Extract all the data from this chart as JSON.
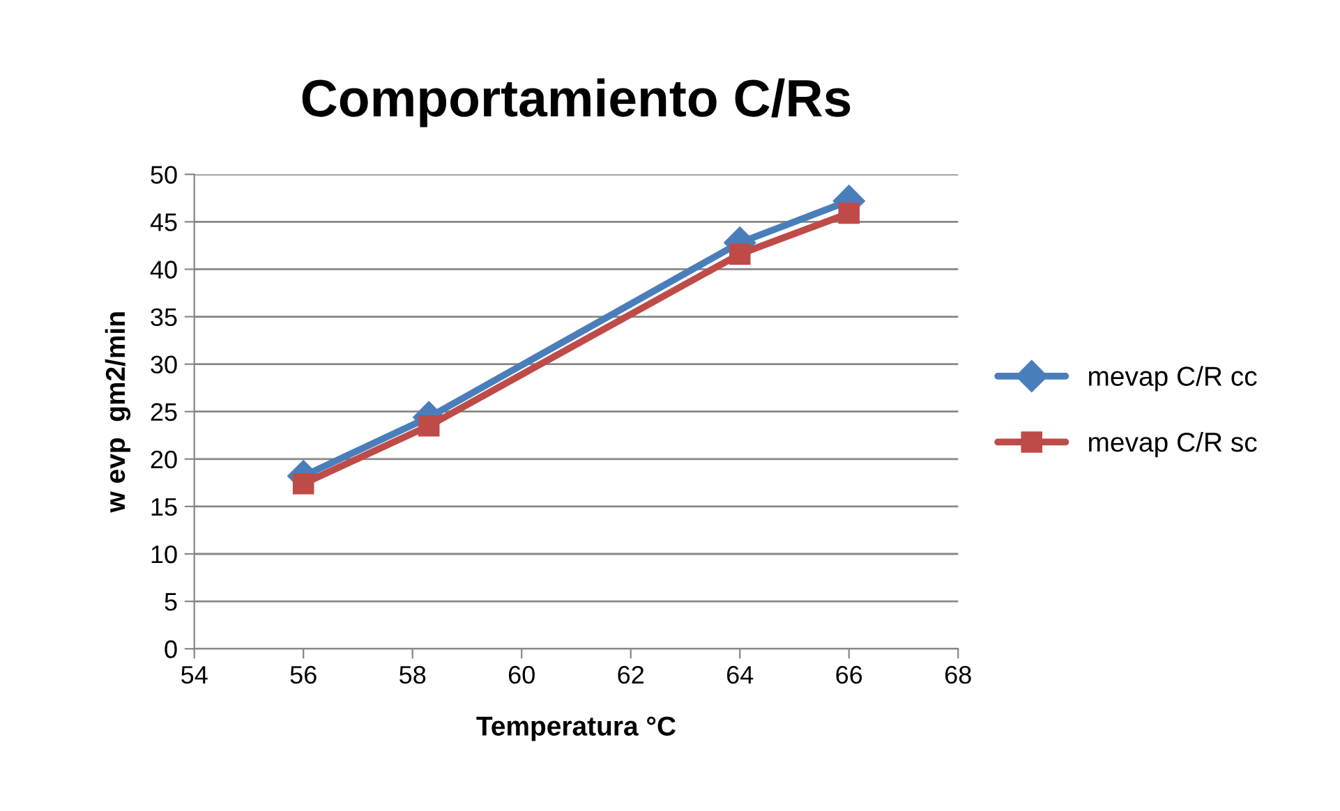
{
  "chart_data": {
    "type": "line",
    "title": "Comportamiento C/Rs",
    "xlabel": "Temperatura °C",
    "ylabel": "w evp  gm2/min",
    "xlim": [
      54,
      68
    ],
    "xticks": [
      54,
      56,
      58,
      60,
      62,
      64,
      66,
      68
    ],
    "ylim": [
      0,
      50
    ],
    "yticks": [
      0,
      5,
      10,
      15,
      20,
      25,
      30,
      35,
      40,
      45,
      50
    ],
    "grid": "y",
    "legend": "right",
    "line_style": "solid",
    "series": [
      {
        "name": "mevap C/R cc",
        "color": "#4a7ebb",
        "marker": "diamond",
        "x": [
          56,
          58.3,
          64,
          66
        ],
        "values": [
          18.2,
          24.4,
          42.8,
          47.2
        ]
      },
      {
        "name": "mevap C/R sc",
        "color": "#be4b48",
        "marker": "square",
        "x": [
          56,
          58.3,
          64,
          66
        ],
        "values": [
          17.4,
          23.5,
          41.6,
          45.9
        ]
      }
    ]
  }
}
